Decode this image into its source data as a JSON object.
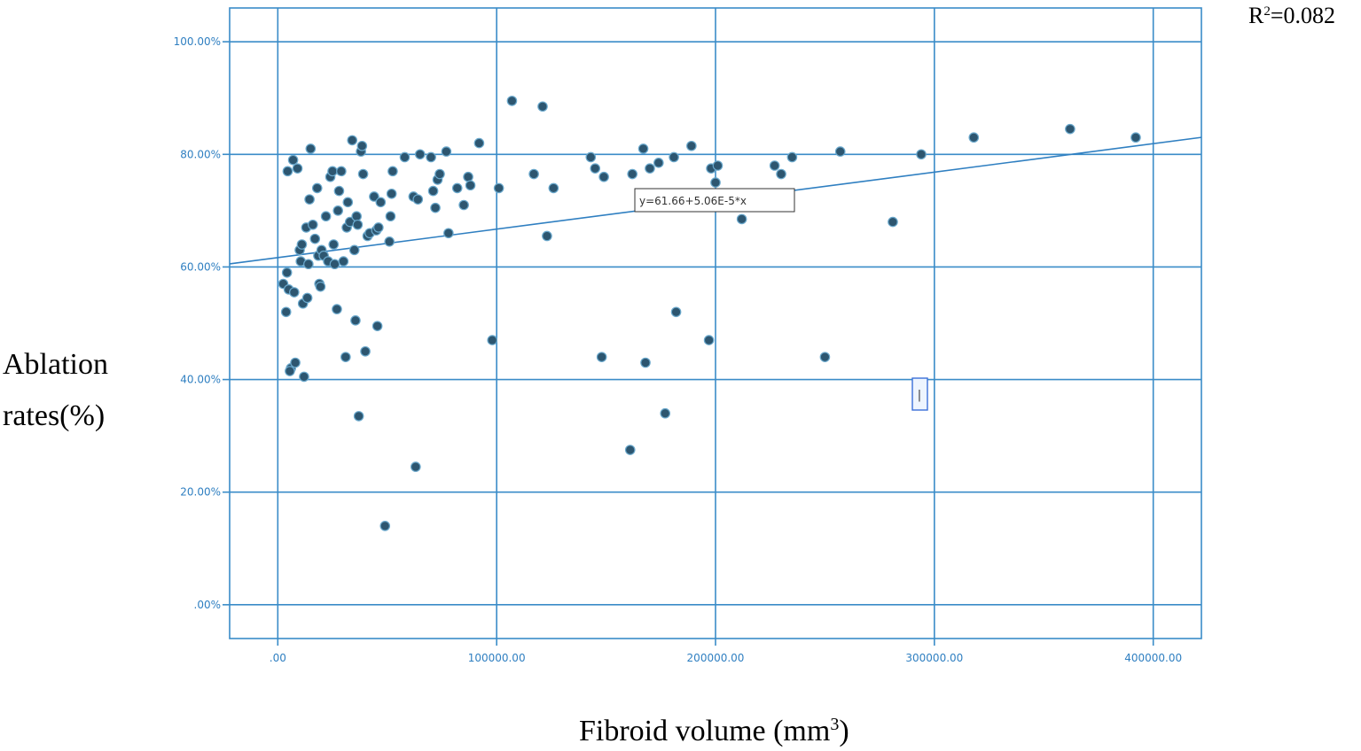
{
  "chart_data": {
    "type": "scatter",
    "title": "",
    "xlabel": "Fibroid volume (mm",
    "xlabel_sup": "3",
    "xlabel_end": ")",
    "ylabel_line1": "Ablation",
    "ylabel_line2": "rates(%)",
    "r_squared_label": "R",
    "r_squared_sup": "2",
    "r_squared_value": "=0.082",
    "equation": "y=61.66+5.06E-5*x",
    "x_range": [
      -22000,
      422000
    ],
    "y_range": [
      -6,
      106
    ],
    "x_ticks": [
      0,
      100000,
      200000,
      300000,
      400000
    ],
    "x_tick_labels": [
      ".00",
      "100000.00",
      "200000.00",
      "300000.00",
      "400000.00"
    ],
    "y_ticks": [
      0,
      20,
      40,
      60,
      80,
      100
    ],
    "y_tick_labels": [
      ".00%",
      "20.00%",
      "40.00%",
      "60.00%",
      "80.00%",
      "100.00%"
    ],
    "grid": true,
    "fit_line": {
      "intercept": 61.66,
      "slope": 5.06e-05
    },
    "outlier_marker": {
      "x": 293500,
      "y": 37,
      "label": "|"
    },
    "colors": {
      "grid": "#3a8cc8",
      "points": "#2d5670",
      "ticks": "#2f7fc1"
    },
    "points": [
      [
        2500,
        57
      ],
      [
        3800,
        52
      ],
      [
        4200,
        59
      ],
      [
        4500,
        77
      ],
      [
        5000,
        56
      ],
      [
        6000,
        42
      ],
      [
        5500,
        41.5
      ],
      [
        7000,
        79
      ],
      [
        7500,
        55.5
      ],
      [
        8000,
        43
      ],
      [
        9000,
        77.5
      ],
      [
        10000,
        63
      ],
      [
        10500,
        61
      ],
      [
        11000,
        64
      ],
      [
        11500,
        53.5
      ],
      [
        12000,
        40.5
      ],
      [
        13000,
        67
      ],
      [
        13500,
        54.5
      ],
      [
        14000,
        60.5
      ],
      [
        14500,
        72
      ],
      [
        15000,
        81
      ],
      [
        16000,
        67.5
      ],
      [
        17000,
        65
      ],
      [
        18000,
        74
      ],
      [
        18500,
        62
      ],
      [
        19000,
        57
      ],
      [
        19500,
        56.5
      ],
      [
        20000,
        63
      ],
      [
        21000,
        62
      ],
      [
        22000,
        69
      ],
      [
        23000,
        61
      ],
      [
        24000,
        76
      ],
      [
        25000,
        77
      ],
      [
        25500,
        64
      ],
      [
        26000,
        60.5
      ],
      [
        27000,
        52.5
      ],
      [
        27500,
        70
      ],
      [
        28000,
        73.5
      ],
      [
        29000,
        77
      ],
      [
        30000,
        61
      ],
      [
        31000,
        44
      ],
      [
        31500,
        67
      ],
      [
        32000,
        71.5
      ],
      [
        33000,
        68
      ],
      [
        34000,
        82.5
      ],
      [
        35000,
        63
      ],
      [
        35500,
        50.5
      ],
      [
        36000,
        69
      ],
      [
        36500,
        67.5
      ],
      [
        37000,
        33.5
      ],
      [
        38000,
        80.5
      ],
      [
        38500,
        81.5
      ],
      [
        39000,
        76.5
      ],
      [
        40000,
        45
      ],
      [
        41000,
        65.5
      ],
      [
        42000,
        66
      ],
      [
        44000,
        72.5
      ],
      [
        45000,
        66.5
      ],
      [
        45500,
        49.5
      ],
      [
        46000,
        67
      ],
      [
        47000,
        71.5
      ],
      [
        49000,
        14
      ],
      [
        51000,
        64.5
      ],
      [
        51500,
        69
      ],
      [
        52000,
        73
      ],
      [
        52500,
        77
      ],
      [
        58000,
        79.5
      ],
      [
        62000,
        72.5
      ],
      [
        63000,
        24.5
      ],
      [
        64000,
        72
      ],
      [
        65000,
        80
      ],
      [
        70000,
        79.5
      ],
      [
        71000,
        73.5
      ],
      [
        72000,
        70.5
      ],
      [
        73000,
        75.5
      ],
      [
        74000,
        76.5
      ],
      [
        77000,
        80.5
      ],
      [
        78000,
        66
      ],
      [
        82000,
        74
      ],
      [
        85000,
        71
      ],
      [
        87000,
        76
      ],
      [
        88000,
        74.5
      ],
      [
        92000,
        82
      ],
      [
        98000,
        47
      ],
      [
        101000,
        74
      ],
      [
        107000,
        89.5
      ],
      [
        117000,
        76.5
      ],
      [
        121000,
        88.5
      ],
      [
        123000,
        65.5
      ],
      [
        126000,
        74
      ],
      [
        143000,
        79.5
      ],
      [
        145000,
        77.5
      ],
      [
        148000,
        44
      ],
      [
        149000,
        76
      ],
      [
        161000,
        27.5
      ],
      [
        162000,
        76.5
      ],
      [
        167000,
        81
      ],
      [
        168000,
        43
      ],
      [
        170000,
        77.5
      ],
      [
        174000,
        78.5
      ],
      [
        177000,
        34
      ],
      [
        181000,
        79.5
      ],
      [
        182000,
        52
      ],
      [
        189000,
        81.5
      ],
      [
        197000,
        47
      ],
      [
        198000,
        77.5
      ],
      [
        200000,
        75
      ],
      [
        201000,
        78
      ],
      [
        212000,
        68.5
      ],
      [
        227000,
        78
      ],
      [
        230000,
        76.5
      ],
      [
        235000,
        79.5
      ],
      [
        250000,
        44
      ],
      [
        257000,
        80.5
      ],
      [
        281000,
        68
      ],
      [
        294000,
        80
      ],
      [
        318000,
        83
      ],
      [
        362000,
        84.5
      ],
      [
        392000,
        83
      ]
    ]
  }
}
